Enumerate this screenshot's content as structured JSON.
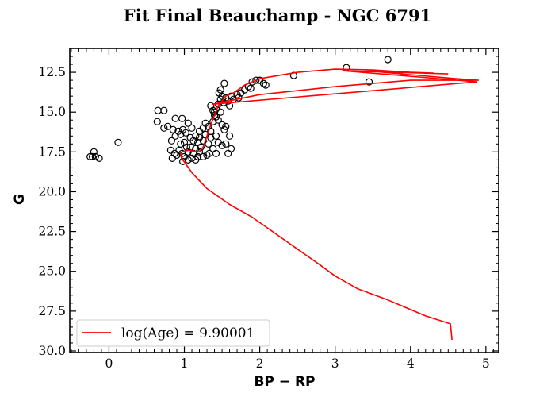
{
  "chart_data": {
    "type": "scatter",
    "title": "Fit Final Beauchamp - NGC 6791",
    "xlabel": "BP − RP",
    "ylabel": "G",
    "xlim": [
      -0.52,
      5.17
    ],
    "ylim": [
      30.1,
      11.0
    ],
    "y_inverted": true,
    "xticks": [
      0,
      1,
      2,
      3,
      4,
      5
    ],
    "yticks": [
      12.5,
      15.0,
      17.5,
      20.0,
      22.5,
      25.0,
      27.5,
      30.0
    ],
    "ytick_labels": [
      "12.5",
      "15.0",
      "17.5",
      "20.0",
      "22.5",
      "25.0",
      "27.5",
      "30.0"
    ],
    "legend": {
      "placement": "lower-left",
      "entries": [
        {
          "label": "log(Age) = 9.90001",
          "color": "#ff0000"
        }
      ]
    },
    "series": [
      {
        "kind": "scatter",
        "marker": "open-circle",
        "color": "#000000",
        "points": [
          [
            -0.25,
            17.8
          ],
          [
            -0.22,
            17.8
          ],
          [
            -0.2,
            17.5
          ],
          [
            -0.18,
            17.8
          ],
          [
            -0.13,
            17.9
          ],
          [
            0.12,
            16.9
          ],
          [
            0.65,
            14.9
          ],
          [
            0.73,
            14.9
          ],
          [
            0.64,
            15.6
          ],
          [
            0.73,
            16.0
          ],
          [
            0.78,
            15.9
          ],
          [
            0.88,
            15.4
          ],
          [
            0.97,
            15.4
          ],
          [
            0.85,
            16.1
          ],
          [
            0.88,
            16.5
          ],
          [
            0.83,
            16.8
          ],
          [
            0.82,
            17.4
          ],
          [
            0.87,
            17.6
          ],
          [
            0.84,
            17.9
          ],
          [
            0.9,
            17.7
          ],
          [
            0.92,
            16.2
          ],
          [
            0.95,
            16.4
          ],
          [
            0.98,
            16.1
          ],
          [
            1.02,
            16.3
          ],
          [
            1.05,
            15.7
          ],
          [
            1.0,
            16.9
          ],
          [
            1.03,
            17.2
          ],
          [
            0.95,
            17.0
          ],
          [
            0.93,
            17.4
          ],
          [
            0.97,
            17.6
          ],
          [
            1.0,
            17.8
          ],
          [
            1.05,
            17.5
          ],
          [
            1.08,
            17.2
          ],
          [
            1.1,
            17.9
          ],
          [
            1.12,
            17.6
          ],
          [
            1.15,
            17.3
          ],
          [
            1.18,
            17.8
          ],
          [
            1.2,
            17.5
          ],
          [
            1.22,
            17.2
          ],
          [
            1.25,
            17.8
          ],
          [
            1.08,
            16.6
          ],
          [
            1.12,
            16.8
          ],
          [
            1.15,
            16.5
          ],
          [
            1.18,
            16.9
          ],
          [
            1.2,
            16.6
          ],
          [
            1.25,
            16.8
          ],
          [
            1.28,
            16.4
          ],
          [
            1.3,
            17.7
          ],
          [
            1.32,
            17.0
          ],
          [
            1.35,
            16.6
          ],
          [
            1.28,
            15.7
          ],
          [
            1.32,
            15.9
          ],
          [
            1.35,
            16.2
          ],
          [
            1.38,
            15.6
          ],
          [
            1.4,
            15.2
          ],
          [
            1.42,
            14.8
          ],
          [
            1.45,
            14.5
          ],
          [
            1.48,
            14.2
          ],
          [
            1.5,
            14.0
          ],
          [
            1.46,
            13.8
          ],
          [
            1.48,
            13.6
          ],
          [
            1.53,
            13.2
          ],
          [
            1.52,
            14.4
          ],
          [
            1.55,
            14.1
          ],
          [
            1.58,
            14.3
          ],
          [
            1.6,
            14.6
          ],
          [
            1.62,
            14.0
          ],
          [
            1.65,
            14.2
          ],
          [
            1.7,
            13.9
          ],
          [
            1.72,
            14.1
          ],
          [
            1.75,
            13.8
          ],
          [
            1.8,
            13.6
          ],
          [
            1.85,
            13.4
          ],
          [
            1.88,
            13.5
          ],
          [
            1.95,
            13.0
          ],
          [
            2.05,
            13.2
          ],
          [
            2.08,
            13.3
          ],
          [
            2.0,
            13.0
          ],
          [
            1.9,
            13.1
          ],
          [
            1.45,
            15.5
          ],
          [
            1.5,
            15.8
          ],
          [
            1.53,
            16.1
          ],
          [
            1.55,
            15.9
          ],
          [
            1.42,
            16.5
          ],
          [
            1.45,
            16.9
          ],
          [
            1.5,
            17.1
          ],
          [
            1.55,
            17.0
          ],
          [
            1.58,
            17.6
          ],
          [
            1.62,
            17.3
          ],
          [
            1.6,
            16.5
          ],
          [
            1.38,
            17.3
          ],
          [
            1.42,
            17.6
          ],
          [
            1.33,
            17.6
          ],
          [
            1.15,
            18.0
          ],
          [
            1.05,
            18.0
          ],
          [
            0.98,
            18.1
          ],
          [
            1.1,
            16.0
          ],
          [
            1.2,
            16.2
          ],
          [
            1.25,
            16.0
          ],
          [
            1.35,
            14.6
          ],
          [
            1.38,
            14.9
          ],
          [
            1.4,
            15.0
          ],
          [
            1.42,
            15.3
          ],
          [
            1.48,
            15.0
          ],
          [
            2.45,
            12.7
          ],
          [
            3.15,
            12.2
          ],
          [
            3.45,
            13.1
          ],
          [
            3.7,
            11.7
          ]
        ]
      },
      {
        "kind": "line",
        "name": "log(Age) = 9.90001",
        "color": "#ff0000",
        "points": [
          [
            4.55,
            29.3
          ],
          [
            4.53,
            28.3
          ],
          [
            4.2,
            27.8
          ],
          [
            3.7,
            26.8
          ],
          [
            3.3,
            26.1
          ],
          [
            3.0,
            25.3
          ],
          [
            2.8,
            24.6
          ],
          [
            2.5,
            23.6
          ],
          [
            2.2,
            22.6
          ],
          [
            1.9,
            21.6
          ],
          [
            1.6,
            20.8
          ],
          [
            1.3,
            19.8
          ],
          [
            1.1,
            18.8
          ],
          [
            0.98,
            18.0
          ],
          [
            0.95,
            17.7
          ],
          [
            0.97,
            17.5
          ],
          [
            1.05,
            17.4
          ],
          [
            1.2,
            17.5
          ],
          [
            1.25,
            17.2
          ],
          [
            1.3,
            16.5
          ],
          [
            1.35,
            15.8
          ],
          [
            1.4,
            15.2
          ],
          [
            1.45,
            14.6
          ],
          [
            1.55,
            14.0
          ],
          [
            1.65,
            13.8
          ],
          [
            1.8,
            13.3
          ],
          [
            2.0,
            12.9
          ],
          [
            2.5,
            12.5
          ],
          [
            3.0,
            12.3
          ],
          [
            3.5,
            12.35
          ],
          [
            4.0,
            12.5
          ],
          [
            4.3,
            12.55
          ],
          [
            3.4,
            12.4
          ],
          [
            4.6,
            12.9
          ],
          [
            4.9,
            13.0
          ],
          [
            4.0,
            13.0
          ],
          [
            3.0,
            13.4
          ],
          [
            2.0,
            13.9
          ],
          [
            1.38,
            14.5
          ],
          [
            4.88,
            13.1
          ],
          [
            3.1,
            12.4
          ],
          [
            4.5,
            12.6
          ]
        ]
      }
    ]
  }
}
